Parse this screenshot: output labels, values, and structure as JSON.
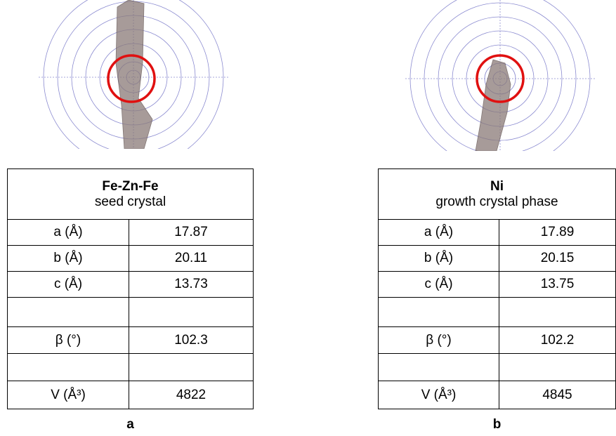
{
  "panels": [
    {
      "title": "Fe-Zn-Fe",
      "subtitle": "seed crystal",
      "label": "a",
      "rows": [
        [
          "a (Å)",
          "17.87"
        ],
        [
          "b (Å)",
          "20.11"
        ],
        [
          "c (Å)",
          "13.73"
        ],
        null,
        [
          "β (°)",
          "102.3"
        ],
        null,
        [
          "V (Å³)",
          "4822"
        ]
      ]
    },
    {
      "title": "Ni",
      "subtitle": "growth crystal phase",
      "label": "b",
      "rows": [
        [
          "a (Å)",
          "17.89"
        ],
        [
          "b (Å)",
          "20.15"
        ],
        [
          "c (Å)",
          "13.75"
        ],
        null,
        [
          "β (°)",
          "102.2"
        ],
        null,
        [
          "V (Å³)",
          "4845"
        ]
      ]
    }
  ]
}
